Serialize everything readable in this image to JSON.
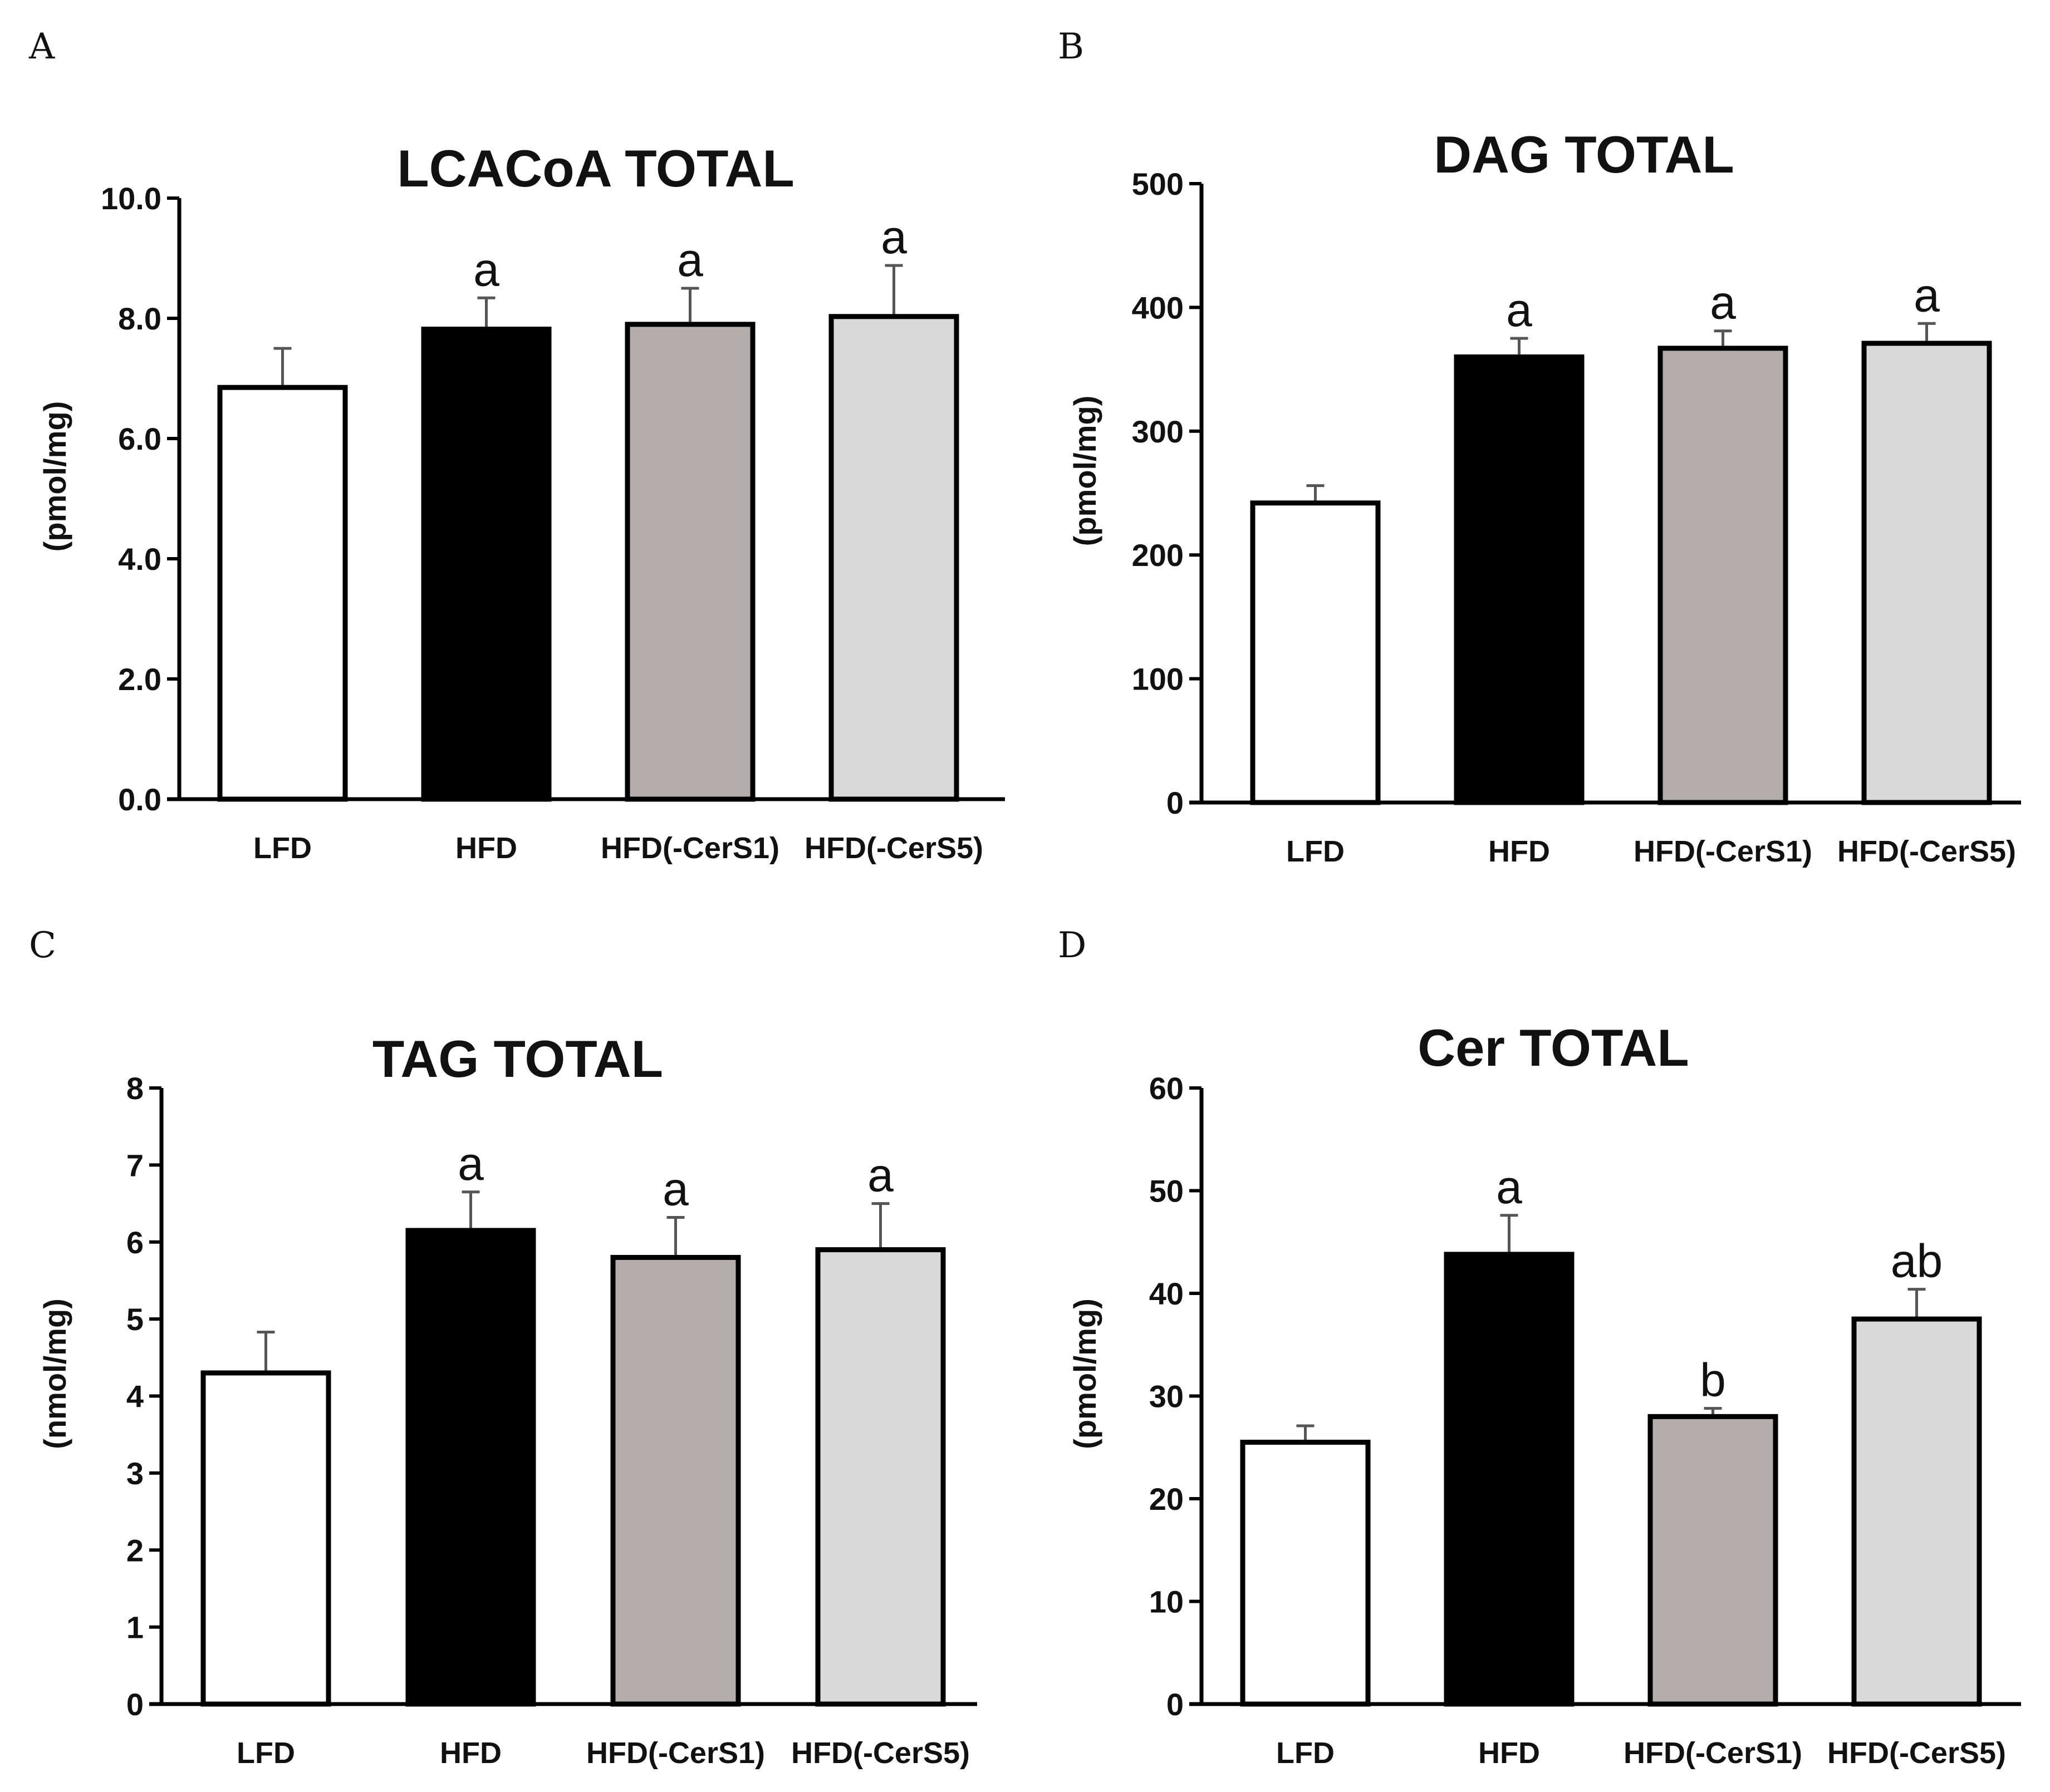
{
  "colors": {
    "LFD": "#ffffff",
    "HFD": "#000000",
    "HFD(-CerS1)": "#b3aeab",
    "HFD(-CerS5)": "#d9d9d9",
    "outline": "#000000",
    "error_bar": "#555555"
  },
  "chart_data": [
    {
      "panel": "A",
      "type": "bar",
      "title": "LCACoA TOTAL",
      "xlabel": "",
      "ylabel": "(pmol/mg)",
      "categories": [
        "LFD",
        "HFD",
        "HFD(-CerS1)",
        "HFD(-CerS5)"
      ],
      "values": [
        6.85,
        7.82,
        7.9,
        8.03
      ],
      "errors": [
        0.65,
        0.52,
        0.6,
        0.85
      ],
      "significance": [
        "",
        "a",
        "a",
        "a"
      ],
      "ylim": [
        0,
        10
      ],
      "yticks": [
        0,
        2,
        4,
        6,
        8,
        10
      ],
      "ytick_labels": [
        "0.0",
        "2.0",
        "4.0",
        "6.0",
        "8.0",
        "10.0"
      ],
      "grid": false
    },
    {
      "panel": "B",
      "type": "bar",
      "title": "DAG TOTAL",
      "xlabel": "",
      "ylabel": "(pmol/mg)",
      "categories": [
        "LFD",
        "HFD",
        "HFD(-CerS1)",
        "HFD(-CerS5)"
      ],
      "values": [
        242,
        360,
        367,
        371
      ],
      "errors": [
        14,
        15,
        14,
        16
      ],
      "significance": [
        "",
        "a",
        "a",
        "a"
      ],
      "ylim": [
        0,
        500
      ],
      "yticks": [
        0,
        100,
        200,
        300,
        400,
        500
      ],
      "ytick_labels": [
        "0",
        "100",
        "200",
        "300",
        "400",
        "500"
      ],
      "grid": false
    },
    {
      "panel": "C",
      "type": "bar",
      "title": "TAG TOTAL",
      "xlabel": "",
      "ylabel": "(nmol/mg)",
      "categories": [
        "LFD",
        "HFD",
        "HFD(-CerS1)",
        "HFD(-CerS5)"
      ],
      "values": [
        4.3,
        6.15,
        5.8,
        5.9
      ],
      "errors": [
        0.53,
        0.5,
        0.52,
        0.6
      ],
      "significance": [
        "",
        "a",
        "a",
        "a"
      ],
      "ylim": [
        0,
        8
      ],
      "yticks": [
        0,
        1,
        2,
        3,
        4,
        5,
        6,
        7,
        8
      ],
      "ytick_labels": [
        "0",
        "1",
        "2",
        "3",
        "4",
        "5",
        "6",
        "7",
        "8"
      ],
      "grid": false
    },
    {
      "panel": "D",
      "type": "bar",
      "title": "Cer TOTAL",
      "xlabel": "",
      "ylabel": "(pmol/mg)",
      "categories": [
        "LFD",
        "HFD",
        "HFD(-CerS1)",
        "HFD(-CerS5)"
      ],
      "values": [
        25.5,
        43.8,
        28.0,
        37.5
      ],
      "errors": [
        1.6,
        3.8,
        0.8,
        2.9
      ],
      "significance": [
        "",
        "a",
        "b",
        "ab"
      ],
      "ylim": [
        0,
        60
      ],
      "yticks": [
        0,
        10,
        20,
        30,
        40,
        50,
        60
      ],
      "ytick_labels": [
        "0",
        "10",
        "20",
        "30",
        "40",
        "50",
        "60"
      ],
      "grid": false
    }
  ]
}
